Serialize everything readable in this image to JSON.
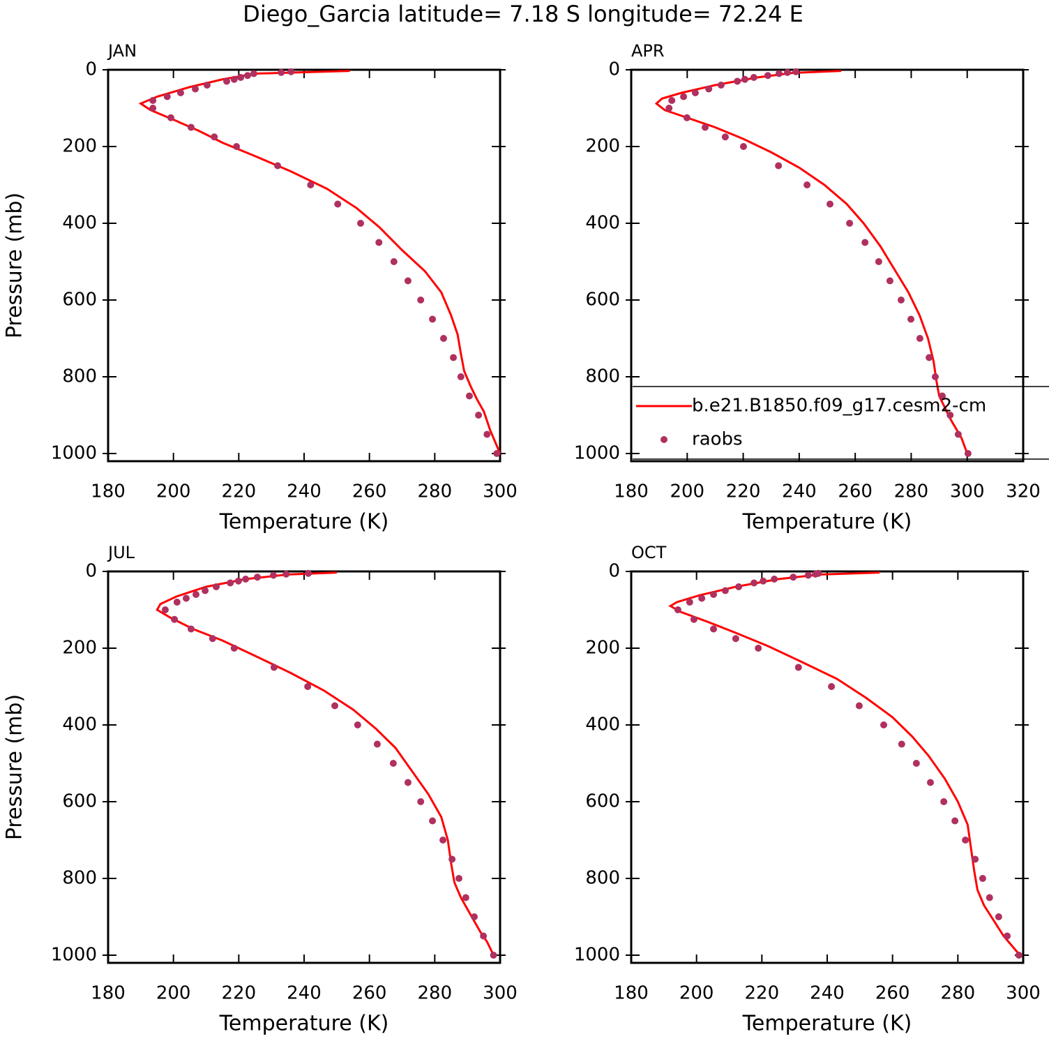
{
  "title": "Diego_Garcia  latitude= 7.18 S longitude= 72.24 E",
  "chart_data": [
    {
      "type": "line",
      "title": "JAN",
      "xlabel": "Temperature (K)",
      "ylabel": "Pressure (mb)",
      "xlim": [
        180,
        300
      ],
      "xticks": [
        180,
        200,
        220,
        240,
        260,
        280,
        300
      ],
      "ylim": [
        0,
        1020
      ],
      "yticks": [
        0,
        200,
        400,
        600,
        800,
        1000
      ],
      "yinvert": true,
      "series": [
        {
          "kind": "line",
          "color": "#ff0000",
          "x": [
            254,
            225,
            215,
            205,
            195,
            190,
            193,
            200,
            208,
            215,
            225,
            236,
            247,
            256,
            263,
            270,
            277,
            282,
            285,
            287,
            288,
            289,
            291,
            293,
            295,
            296,
            297,
            298,
            299,
            300
          ],
          "y": [
            3,
            10,
            25,
            45,
            70,
            88,
            105,
            130,
            160,
            190,
            225,
            265,
            310,
            360,
            410,
            470,
            525,
            580,
            640,
            690,
            740,
            785,
            825,
            860,
            890,
            915,
            940,
            960,
            980,
            1000
          ]
        },
        {
          "kind": "scatter",
          "color": "#b03060",
          "x": [
            299,
            296,
            293.4,
            290.6,
            288,
            285.7,
            282.7,
            279.3,
            275.7,
            271.8,
            267.5,
            262.9,
            257.3,
            250.3,
            242,
            231.9,
            219.3,
            212.5,
            205.4,
            199.2,
            193.7,
            193.7,
            198.1,
            202.2,
            206.7,
            210.3,
            216.3,
            218.6,
            220.6,
            222.7,
            224.6,
            233,
            236
          ],
          "y": [
            1000,
            950,
            900,
            850,
            800,
            750,
            700,
            650,
            600,
            550,
            500,
            450,
            400,
            350,
            300,
            250,
            200,
            175,
            150,
            125,
            100,
            80,
            70,
            60,
            50,
            40,
            30,
            25,
            20,
            15,
            10,
            7,
            5
          ]
        }
      ]
    },
    {
      "type": "line",
      "title": "APR",
      "xlabel": "Temperature (K)",
      "xlim": [
        180,
        320
      ],
      "xticks": [
        180,
        200,
        220,
        240,
        260,
        280,
        300,
        320
      ],
      "ylim": [
        0,
        1020
      ],
      "yticks": [
        0,
        200,
        400,
        600,
        800,
        1000
      ],
      "yinvert": true,
      "legend": "lower right",
      "series": [
        {
          "kind": "line",
          "name": "b.e21.B1850.f09_g17.cesm2-cm",
          "color": "#ff0000",
          "x": [
            255,
            238,
            225,
            210,
            198,
            191,
            189,
            192,
            200,
            210,
            220,
            230,
            240,
            249,
            257,
            263,
            269,
            274,
            279,
            283,
            286,
            288,
            289,
            290,
            292,
            294,
            296,
            298,
            300
          ],
          "y": [
            3,
            8,
            20,
            40,
            60,
            75,
            88,
            105,
            125,
            150,
            180,
            215,
            255,
            300,
            350,
            400,
            460,
            520,
            580,
            640,
            700,
            760,
            810,
            850,
            880,
            910,
            935,
            960,
            1000
          ]
        },
        {
          "kind": "scatter",
          "name": "raobs",
          "color": "#b03060",
          "x": [
            300.3,
            296.8,
            293.9,
            291.1,
            288.6,
            286.4,
            283.1,
            279.9,
            276.4,
            272.4,
            268.4,
            263.5,
            258,
            251,
            242.8,
            232.6,
            220.1,
            213.6,
            206.4,
            199.9,
            193.5,
            194.5,
            198.7,
            202.9,
            207.7,
            212.1,
            217.9,
            220.6,
            223.8,
            228.8,
            232.8,
            235.8,
            238.8
          ],
          "y": [
            1000,
            950,
            900,
            850,
            800,
            750,
            700,
            650,
            600,
            550,
            500,
            450,
            400,
            350,
            300,
            250,
            200,
            175,
            150,
            125,
            100,
            80,
            70,
            60,
            50,
            40,
            30,
            25,
            20,
            15,
            10,
            7,
            5
          ]
        }
      ]
    },
    {
      "type": "line",
      "title": "JUL",
      "xlabel": "Temperature (K)",
      "ylabel": "Pressure (mb)",
      "xlim": [
        180,
        300
      ],
      "xticks": [
        180,
        200,
        220,
        240,
        260,
        280,
        300
      ],
      "ylim": [
        0,
        1020
      ],
      "yticks": [
        0,
        200,
        400,
        600,
        800,
        1000
      ],
      "yinvert": true,
      "series": [
        {
          "kind": "line",
          "color": "#ff0000",
          "x": [
            250,
            235,
            222,
            210,
            201,
            196,
            195,
            199,
            206,
            215,
            225,
            236,
            246,
            255,
            262,
            268,
            273,
            278,
            282,
            284,
            285,
            286,
            288,
            290,
            292,
            294,
            296,
            298
          ],
          "y": [
            3,
            8,
            20,
            40,
            65,
            85,
            100,
            120,
            150,
            180,
            220,
            265,
            310,
            360,
            410,
            460,
            520,
            580,
            640,
            700,
            760,
            810,
            850,
            880,
            910,
            940,
            965,
            1000
          ]
        },
        {
          "kind": "scatter",
          "color": "#b03060",
          "x": [
            298,
            294.9,
            292.1,
            289.5,
            287.4,
            285.3,
            282.5,
            279.3,
            275.7,
            271.8,
            267.3,
            262.4,
            256.4,
            249.4,
            241.1,
            230.8,
            218.6,
            212,
            205.4,
            200.3,
            197.5,
            201.1,
            203.9,
            206.9,
            209.7,
            213.1,
            217.4,
            219.9,
            222.1,
            225.7,
            230.6,
            234.5,
            241.3
          ],
          "y": [
            1000,
            950,
            900,
            850,
            800,
            750,
            700,
            650,
            600,
            550,
            500,
            450,
            400,
            350,
            300,
            250,
            200,
            175,
            150,
            125,
            100,
            80,
            70,
            60,
            50,
            40,
            30,
            25,
            20,
            15,
            10,
            7,
            5
          ]
        }
      ]
    },
    {
      "type": "line",
      "title": "OCT",
      "xlabel": "Temperature (K)",
      "xlim": [
        180,
        300
      ],
      "xticks": [
        180,
        200,
        220,
        240,
        260,
        280,
        300
      ],
      "ylim": [
        0,
        1020
      ],
      "yticks": [
        0,
        200,
        400,
        600,
        800,
        1000
      ],
      "yinvert": true,
      "series": [
        {
          "kind": "line",
          "color": "#ff0000",
          "x": [
            256,
            238,
            225,
            212,
            201,
            194,
            192,
            195,
            203,
            212,
            222,
            232,
            243,
            252,
            260,
            266,
            271,
            276,
            280,
            283,
            284,
            285,
            286,
            288,
            291,
            294,
            298,
            299
          ],
          "y": [
            3,
            8,
            20,
            40,
            62,
            80,
            90,
            105,
            130,
            160,
            195,
            235,
            280,
            330,
            380,
            430,
            480,
            540,
            600,
            660,
            720,
            780,
            830,
            870,
            910,
            950,
            990,
            1000
          ]
        },
        {
          "kind": "scatter",
          "color": "#b03060",
          "x": [
            298.7,
            295.1,
            292.5,
            289.7,
            287.6,
            285.3,
            282.3,
            279.1,
            275.7,
            271.6,
            267.3,
            262.8,
            257.3,
            249.8,
            241.3,
            231.2,
            218.9,
            212,
            205.2,
            199.2,
            194.3,
            197.9,
            201.6,
            205.2,
            208.8,
            212.9,
            217.6,
            220.4,
            223.8,
            229.6,
            234.2,
            236.4,
            237.3
          ],
          "y": [
            1000,
            950,
            900,
            850,
            800,
            750,
            700,
            650,
            600,
            550,
            500,
            450,
            400,
            350,
            300,
            250,
            200,
            175,
            150,
            125,
            100,
            80,
            70,
            60,
            50,
            40,
            30,
            25,
            20,
            15,
            10,
            7,
            5
          ]
        }
      ]
    }
  ]
}
